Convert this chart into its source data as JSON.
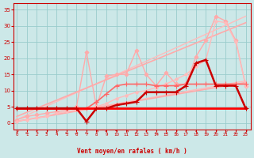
{
  "title": "",
  "xlabel": "Vent moyen/en rafales ( km/h )",
  "bg_color": "#cce8e8",
  "grid_color": "#99cccc",
  "x_ticks": [
    0,
    1,
    2,
    3,
    4,
    5,
    6,
    7,
    8,
    9,
    10,
    11,
    12,
    13,
    14,
    15,
    16,
    17,
    18,
    19,
    20,
    21,
    22,
    23
  ],
  "y_ticks": [
    0,
    5,
    10,
    15,
    20,
    25,
    30,
    35
  ],
  "ylim": [
    -2,
    37
  ],
  "xlim": [
    -0.3,
    23.5
  ],
  "series": [
    {
      "comment": "light pink straight diagonal - upper bound rafales trend",
      "x": [
        0,
        23
      ],
      "y": [
        1.0,
        33.0
      ],
      "color": "#ffbbbb",
      "lw": 1.0,
      "marker": null,
      "ms": 0,
      "zorder": 2
    },
    {
      "comment": "light pink straight diagonal - lower bound moyen trend",
      "x": [
        0,
        23
      ],
      "y": [
        0.5,
        13.0
      ],
      "color": "#ffbbbb",
      "lw": 1.0,
      "marker": null,
      "ms": 0,
      "zorder": 2
    },
    {
      "comment": "medium pink straight diagonal - rafales trend line",
      "x": [
        0,
        23
      ],
      "y": [
        2.0,
        31.0
      ],
      "color": "#ffaaaa",
      "lw": 1.2,
      "marker": null,
      "ms": 0,
      "zorder": 2
    },
    {
      "comment": "medium pink straight diagonal - moyen trend line",
      "x": [
        0,
        23
      ],
      "y": [
        0.5,
        12.5
      ],
      "color": "#ffaaaa",
      "lw": 1.2,
      "marker": null,
      "ms": 0,
      "zorder": 2
    },
    {
      "comment": "light pink jagged - rafales with diamonds",
      "x": [
        0,
        1,
        2,
        3,
        4,
        5,
        6,
        7,
        8,
        9,
        10,
        11,
        12,
        13,
        14,
        15,
        16,
        17,
        18,
        19,
        20,
        21,
        22,
        23
      ],
      "y": [
        1.0,
        2.0,
        2.5,
        3.0,
        3.5,
        4.0,
        5.0,
        22.0,
        5.0,
        14.5,
        15.0,
        15.0,
        22.5,
        15.0,
        11.5,
        15.5,
        12.0,
        12.0,
        20.5,
        25.5,
        33.0,
        31.5,
        25.5,
        11.5
      ],
      "color": "#ffaaaa",
      "lw": 1.0,
      "marker": "D",
      "ms": 2.5,
      "zorder": 2
    },
    {
      "comment": "medium pink jagged - moyen with small markers",
      "x": [
        0,
        1,
        2,
        3,
        4,
        5,
        6,
        7,
        8,
        9,
        10,
        11,
        12,
        13,
        14,
        15,
        16,
        17,
        18,
        19,
        20,
        21,
        22,
        23
      ],
      "y": [
        0.5,
        1.0,
        1.5,
        2.0,
        3.0,
        3.5,
        4.0,
        4.5,
        5.0,
        6.0,
        7.5,
        8.5,
        9.5,
        10.0,
        11.0,
        12.0,
        13.5,
        15.0,
        17.5,
        19.5,
        31.5,
        31.0,
        25.0,
        11.5
      ],
      "color": "#ffbbbb",
      "lw": 1.0,
      "marker": "D",
      "ms": 2.0,
      "zorder": 2
    },
    {
      "comment": "darker red jagged moyen line with + markers",
      "x": [
        0,
        1,
        2,
        3,
        4,
        5,
        6,
        7,
        8,
        9,
        10,
        11,
        12,
        13,
        14,
        15,
        16,
        17,
        18,
        19,
        20,
        21,
        22,
        23
      ],
      "y": [
        4.5,
        4.5,
        4.5,
        4.5,
        4.5,
        4.5,
        4.5,
        4.5,
        6.5,
        9.0,
        11.5,
        12.0,
        12.0,
        12.0,
        11.5,
        11.5,
        11.5,
        12.0,
        12.0,
        12.0,
        12.0,
        12.0,
        12.0,
        12.0
      ],
      "color": "#ff6666",
      "lw": 1.2,
      "marker": "+",
      "ms": 4,
      "zorder": 3
    },
    {
      "comment": "dark red main line - with dip at x=7 and peak at x=19",
      "x": [
        0,
        1,
        2,
        3,
        4,
        5,
        6,
        7,
        8,
        9,
        10,
        11,
        12,
        13,
        14,
        15,
        16,
        17,
        18,
        19,
        20,
        21,
        22,
        23
      ],
      "y": [
        4.5,
        4.5,
        4.5,
        4.5,
        4.5,
        4.5,
        4.5,
        0.5,
        4.5,
        4.5,
        5.5,
        6.0,
        6.5,
        9.5,
        9.5,
        9.5,
        9.5,
        11.5,
        18.5,
        19.5,
        11.5,
        11.5,
        11.5,
        4.5
      ],
      "color": "#cc0000",
      "lw": 1.8,
      "marker": "+",
      "ms": 4,
      "zorder": 4
    },
    {
      "comment": "flat red line at y=4.5",
      "x": [
        0,
        23
      ],
      "y": [
        4.5,
        4.5
      ],
      "color": "#ff0000",
      "lw": 2.0,
      "marker": null,
      "ms": 0,
      "zorder": 3
    }
  ],
  "arrow_symbols": [
    "↙",
    "←",
    "↖",
    "↙",
    "↙",
    "←",
    "→",
    "←",
    "↗",
    "↖",
    "↑",
    "↗",
    "↙",
    "↖",
    "←",
    "→",
    "↙",
    "↖",
    "↘",
    "↓",
    "↙",
    "↙",
    "←",
    "↙"
  ],
  "arrow_color": "#cc0000",
  "xlabel_color": "#cc0000",
  "tick_color": "#cc0000",
  "axis_line_color": "#cc0000"
}
